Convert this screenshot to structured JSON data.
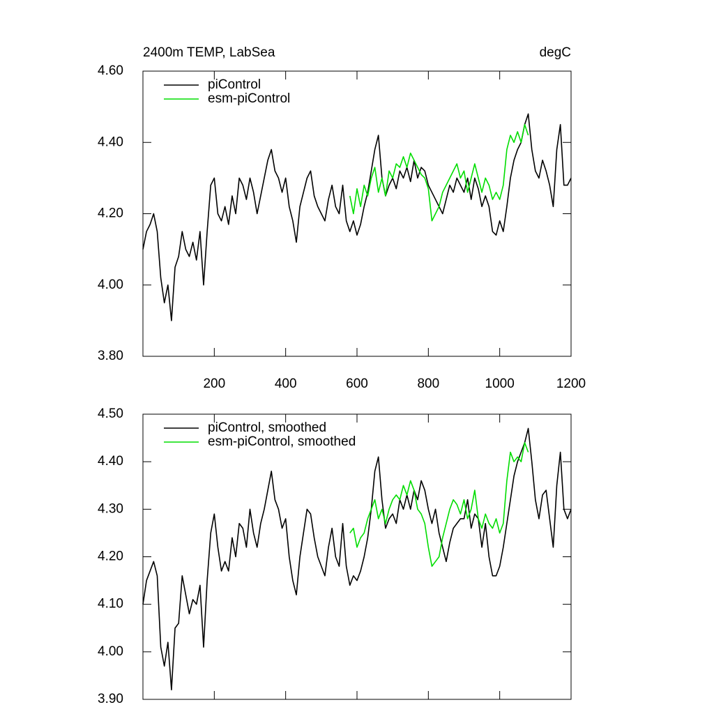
{
  "chart_data": [
    {
      "type": "line",
      "title": "2400m TEMP, LabSea",
      "right_title": "degC",
      "x": [
        0,
        10,
        20,
        30,
        40,
        50,
        60,
        70,
        80,
        90,
        100,
        110,
        120,
        130,
        140,
        150,
        160,
        170,
        180,
        190,
        200,
        210,
        220,
        230,
        240,
        250,
        260,
        270,
        280,
        290,
        300,
        310,
        320,
        330,
        340,
        350,
        360,
        370,
        380,
        390,
        400,
        410,
        420,
        430,
        440,
        450,
        460,
        470,
        480,
        490,
        500,
        510,
        520,
        530,
        540,
        550,
        560,
        570,
        580,
        590,
        600,
        610,
        620,
        630,
        640,
        650,
        660,
        670,
        680,
        690,
        700,
        710,
        720,
        730,
        740,
        750,
        760,
        770,
        780,
        790,
        800,
        810,
        820,
        830,
        840,
        850,
        860,
        870,
        880,
        890,
        900,
        910,
        920,
        930,
        940,
        950,
        960,
        970,
        980,
        990,
        1000,
        1010,
        1020,
        1030,
        1040,
        1050,
        1060,
        1070,
        1080,
        1090,
        1100,
        1110,
        1120,
        1130,
        1140,
        1150,
        1160,
        1170,
        1180,
        1190,
        1200
      ],
      "series": [
        {
          "name": "piControl",
          "color": "#000000",
          "values": [
            4.1,
            4.15,
            4.17,
            4.2,
            4.15,
            4.02,
            3.95,
            4.0,
            3.9,
            4.05,
            4.08,
            4.15,
            4.1,
            4.08,
            4.12,
            4.07,
            4.15,
            4.0,
            4.15,
            4.28,
            4.3,
            4.2,
            4.18,
            4.22,
            4.17,
            4.25,
            4.2,
            4.3,
            4.28,
            4.24,
            4.3,
            4.26,
            4.2,
            4.25,
            4.3,
            4.35,
            4.38,
            4.32,
            4.3,
            4.26,
            4.3,
            4.22,
            4.18,
            4.12,
            4.22,
            4.26,
            4.3,
            4.32,
            4.25,
            4.22,
            4.2,
            4.18,
            4.24,
            4.28,
            4.22,
            4.2,
            4.28,
            4.18,
            4.15,
            4.18,
            4.14,
            4.17,
            4.22,
            4.26,
            4.32,
            4.38,
            4.42,
            4.3,
            4.25,
            4.28,
            4.3,
            4.27,
            4.32,
            4.3,
            4.33,
            4.29,
            4.35,
            4.3,
            4.33,
            4.32,
            4.28,
            4.26,
            4.24,
            4.22,
            4.2,
            4.24,
            4.28,
            4.26,
            4.3,
            4.28,
            4.26,
            4.3,
            4.24,
            4.3,
            4.27,
            4.22,
            4.25,
            4.22,
            4.15,
            4.14,
            4.18,
            4.15,
            4.22,
            4.3,
            4.35,
            4.38,
            4.4,
            4.45,
            4.48,
            4.38,
            4.32,
            4.3,
            4.35,
            4.32,
            4.28,
            4.22,
            4.38,
            4.45,
            4.28,
            4.28,
            4.3
          ]
        },
        {
          "name": "esm-piControl",
          "color": "#00dd00",
          "values": [
            null,
            null,
            null,
            null,
            null,
            null,
            null,
            null,
            null,
            null,
            null,
            null,
            null,
            null,
            null,
            null,
            null,
            null,
            null,
            null,
            null,
            null,
            null,
            null,
            null,
            null,
            null,
            null,
            null,
            null,
            null,
            null,
            null,
            null,
            null,
            null,
            null,
            null,
            null,
            null,
            null,
            null,
            null,
            null,
            null,
            null,
            null,
            null,
            null,
            null,
            null,
            null,
            null,
            null,
            null,
            null,
            null,
            null,
            4.25,
            4.2,
            4.27,
            4.22,
            4.28,
            4.25,
            4.3,
            4.33,
            4.26,
            4.3,
            4.25,
            4.32,
            4.3,
            4.34,
            4.33,
            4.36,
            4.33,
            4.37,
            4.35,
            4.33,
            4.31,
            4.3,
            4.27,
            4.18,
            4.2,
            4.22,
            4.26,
            4.28,
            4.3,
            4.32,
            4.34,
            4.3,
            4.32,
            4.26,
            4.3,
            4.34,
            4.3,
            4.26,
            4.3,
            4.28,
            4.24,
            4.26,
            4.24,
            4.28,
            4.38,
            4.42,
            4.4,
            4.43,
            4.4,
            4.45,
            4.42,
            null,
            null,
            null,
            null,
            null,
            null,
            null,
            null,
            null,
            null,
            null,
            null
          ]
        }
      ],
      "xlim": [
        0,
        1200
      ],
      "xticks": [
        200,
        400,
        600,
        800,
        1000,
        1200
      ],
      "ylim": [
        3.8,
        4.6
      ],
      "yticks": [
        {
          "value": 3.8,
          "label": "3.80"
        },
        {
          "value": 4.0,
          "label": "4.00"
        },
        {
          "value": 4.2,
          "label": "4.20"
        },
        {
          "value": 4.4,
          "label": "4.40"
        },
        {
          "value": 4.6,
          "label": "4.60"
        }
      ],
      "xtick_labels": true,
      "legend": "upper left"
    },
    {
      "type": "line",
      "x": [
        0,
        10,
        20,
        30,
        40,
        50,
        60,
        70,
        80,
        90,
        100,
        110,
        120,
        130,
        140,
        150,
        160,
        170,
        180,
        190,
        200,
        210,
        220,
        230,
        240,
        250,
        260,
        270,
        280,
        290,
        300,
        310,
        320,
        330,
        340,
        350,
        360,
        370,
        380,
        390,
        400,
        410,
        420,
        430,
        440,
        450,
        460,
        470,
        480,
        490,
        500,
        510,
        520,
        530,
        540,
        550,
        560,
        570,
        580,
        590,
        600,
        610,
        620,
        630,
        640,
        650,
        660,
        670,
        680,
        690,
        700,
        710,
        720,
        730,
        740,
        750,
        760,
        770,
        780,
        790,
        800,
        810,
        820,
        830,
        840,
        850,
        860,
        870,
        880,
        890,
        900,
        910,
        920,
        930,
        940,
        950,
        960,
        970,
        980,
        990,
        1000,
        1010,
        1020,
        1030,
        1040,
        1050,
        1060,
        1070,
        1080,
        1090,
        1100,
        1110,
        1120,
        1130,
        1140,
        1150,
        1160,
        1170,
        1180,
        1190,
        1200
      ],
      "series": [
        {
          "name": "piControl, smoothed",
          "color": "#000000",
          "values": [
            4.1,
            4.15,
            4.17,
            4.19,
            4.16,
            4.01,
            3.97,
            4.02,
            3.92,
            4.05,
            4.06,
            4.16,
            4.12,
            4.08,
            4.11,
            4.1,
            4.14,
            4.01,
            4.15,
            4.25,
            4.29,
            4.22,
            4.17,
            4.19,
            4.17,
            4.24,
            4.2,
            4.27,
            4.26,
            4.22,
            4.3,
            4.25,
            4.22,
            4.27,
            4.3,
            4.34,
            4.38,
            4.32,
            4.3,
            4.26,
            4.28,
            4.2,
            4.15,
            4.12,
            4.2,
            4.25,
            4.3,
            4.29,
            4.24,
            4.2,
            4.18,
            4.16,
            4.22,
            4.26,
            4.2,
            4.18,
            4.27,
            4.18,
            4.14,
            4.16,
            4.15,
            4.17,
            4.2,
            4.24,
            4.3,
            4.38,
            4.41,
            4.32,
            4.26,
            4.28,
            4.29,
            4.27,
            4.32,
            4.3,
            4.33,
            4.3,
            4.34,
            4.32,
            4.36,
            4.34,
            4.3,
            4.27,
            4.3,
            4.25,
            4.22,
            4.19,
            4.23,
            4.26,
            4.27,
            4.28,
            4.28,
            4.32,
            4.26,
            4.29,
            4.28,
            4.22,
            4.27,
            4.2,
            4.16,
            4.16,
            4.18,
            4.22,
            4.27,
            4.32,
            4.37,
            4.4,
            4.42,
            4.44,
            4.47,
            4.4,
            4.32,
            4.28,
            4.33,
            4.34,
            4.28,
            4.22,
            4.35,
            4.42,
            4.3,
            4.28,
            4.3
          ]
        },
        {
          "name": "esm-piControl, smoothed",
          "color": "#00dd00",
          "values": [
            null,
            null,
            null,
            null,
            null,
            null,
            null,
            null,
            null,
            null,
            null,
            null,
            null,
            null,
            null,
            null,
            null,
            null,
            null,
            null,
            null,
            null,
            null,
            null,
            null,
            null,
            null,
            null,
            null,
            null,
            null,
            null,
            null,
            null,
            null,
            null,
            null,
            null,
            null,
            null,
            null,
            null,
            null,
            null,
            null,
            null,
            null,
            null,
            null,
            null,
            null,
            null,
            null,
            null,
            null,
            null,
            null,
            null,
            4.25,
            4.26,
            4.22,
            4.24,
            4.25,
            4.28,
            4.3,
            4.32,
            4.28,
            4.3,
            4.27,
            4.3,
            4.32,
            4.33,
            4.32,
            4.35,
            4.33,
            4.36,
            4.34,
            4.3,
            4.29,
            4.27,
            4.22,
            4.18,
            4.19,
            4.2,
            4.24,
            4.27,
            4.3,
            4.32,
            4.31,
            4.29,
            4.32,
            4.28,
            4.3,
            4.34,
            4.28,
            4.26,
            4.29,
            4.27,
            4.26,
            4.28,
            4.25,
            4.27,
            4.36,
            4.42,
            4.4,
            4.41,
            4.4,
            4.44,
            4.42,
            null,
            null,
            null,
            null,
            null,
            null,
            null,
            null,
            null,
            null,
            null,
            null
          ]
        }
      ],
      "xlim": [
        0,
        1200
      ],
      "xticks": [
        200,
        400,
        600,
        800,
        1000,
        1200
      ],
      "ylim": [
        3.9,
        4.5
      ],
      "yticks": [
        {
          "value": 3.9,
          "label": "3.90"
        },
        {
          "value": 4.0,
          "label": "4.00"
        },
        {
          "value": 4.1,
          "label": "4.10"
        },
        {
          "value": 4.2,
          "label": "4.20"
        },
        {
          "value": 4.3,
          "label": "4.30"
        },
        {
          "value": 4.4,
          "label": "4.40"
        },
        {
          "value": 4.5,
          "label": "4.50"
        }
      ],
      "xtick_labels": false,
      "legend": "upper left"
    }
  ]
}
